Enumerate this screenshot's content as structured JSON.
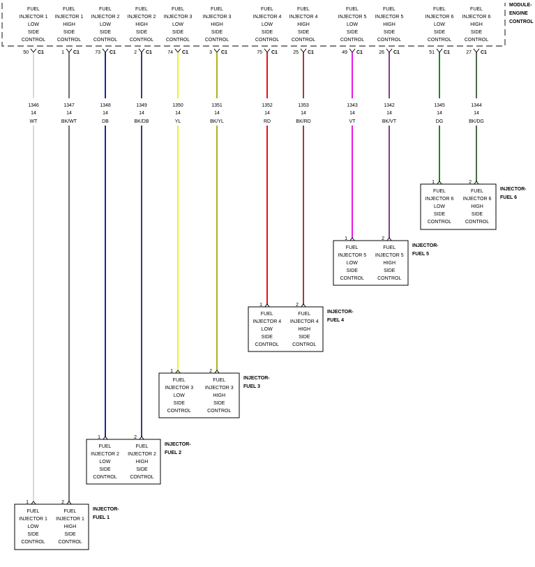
{
  "module": {
    "name_lines": [
      "MODULE-",
      "ENGINE",
      "CONTROL"
    ],
    "connector": "C1"
  },
  "wires": [
    {
      "pin": "50",
      "circuit": "1346",
      "gauge": "14",
      "color_code": "WT",
      "color": "#d9d9d9",
      "desc": [
        "FUEL",
        "INJECTOR 1",
        "LOW",
        "SIDE",
        "CONTROL"
      ],
      "end_pin": "1",
      "injector": 1
    },
    {
      "pin": "1",
      "circuit": "1347",
      "gauge": "14",
      "color_code": "BK/WT",
      "color": "#6e6e6e",
      "desc": [
        "FUEL",
        "INJECTOR 1",
        "HIGH",
        "SIDE",
        "CONTROL"
      ],
      "end_pin": "2",
      "injector": 1
    },
    {
      "pin": "73",
      "circuit": "1348",
      "gauge": "14",
      "color_code": "DB",
      "color": "#1a2a8c",
      "desc": [
        "FUEL",
        "INJECTOR 2",
        "LOW",
        "SIDE",
        "CONTROL"
      ],
      "end_pin": "1",
      "injector": 2
    },
    {
      "pin": "2",
      "circuit": "1349",
      "gauge": "14",
      "color_code": "BK/DB",
      "color": "#3b3b6e",
      "desc": [
        "FUEL",
        "INJECTOR 2",
        "HIGH",
        "SIDE",
        "CONTROL"
      ],
      "end_pin": "2",
      "injector": 2
    },
    {
      "pin": "74",
      "circuit": "1350",
      "gauge": "14",
      "color_code": "YL",
      "color": "#f2f21e",
      "desc": [
        "FUEL",
        "INJECTOR 3",
        "LOW",
        "SIDE",
        "CONTROL"
      ],
      "end_pin": "1",
      "injector": 3
    },
    {
      "pin": "3",
      "circuit": "1351",
      "gauge": "14",
      "color_code": "BK/YL",
      "color": "#b3ad1a",
      "desc": [
        "FUEL",
        "INJECTOR 3",
        "HIGH",
        "SIDE",
        "CONTROL"
      ],
      "end_pin": "2",
      "injector": 3
    },
    {
      "pin": "75",
      "circuit": "1352",
      "gauge": "14",
      "color_code": "RD",
      "color": "#e81414",
      "desc": [
        "FUEL",
        "INJECTOR 4",
        "LOW",
        "SIDE",
        "CONTROL"
      ],
      "end_pin": "1",
      "injector": 4
    },
    {
      "pin": "25",
      "circuit": "1353",
      "gauge": "14",
      "color_code": "BK/RD",
      "color": "#a33a3a",
      "desc": [
        "FUEL",
        "INJECTOR 4",
        "HIGH",
        "SIDE",
        "CONTROL"
      ],
      "end_pin": "2",
      "injector": 4
    },
    {
      "pin": "49",
      "circuit": "1343",
      "gauge": "14",
      "color_code": "VT",
      "color": "#e619e6",
      "desc": [
        "FUEL",
        "INJECTOR 5",
        "LOW",
        "SIDE",
        "CONTROL"
      ],
      "end_pin": "1",
      "injector": 5
    },
    {
      "pin": "26",
      "circuit": "1342",
      "gauge": "14",
      "color_code": "BK/VT",
      "color": "#8a3a8a",
      "desc": [
        "FUEL",
        "INJECTOR 5",
        "HIGH",
        "SIDE",
        "CONTROL"
      ],
      "end_pin": "2",
      "injector": 5
    },
    {
      "pin": "51",
      "circuit": "1345",
      "gauge": "14",
      "color_code": "DG",
      "color": "#1a8a1a",
      "desc": [
        "FUEL",
        "INJECTOR 6",
        "LOW",
        "SIDE",
        "CONTROL"
      ],
      "end_pin": "1",
      "injector": 6
    },
    {
      "pin": "27",
      "circuit": "1344",
      "gauge": "14",
      "color_code": "BK/DG",
      "color": "#4a6a4a",
      "desc": [
        "FUEL",
        "INJECTOR 6",
        "HIGH",
        "SIDE",
        "CONTROL"
      ],
      "end_pin": "2",
      "injector": 6
    }
  ],
  "injectors": [
    {
      "id": 1,
      "name_lines": [
        "INJECTOR-",
        "FUEL 1"
      ]
    },
    {
      "id": 2,
      "name_lines": [
        "INJECTOR-",
        "FUEL 2"
      ]
    },
    {
      "id": 3,
      "name_lines": [
        "INJECTOR-",
        "FUEL 3"
      ]
    },
    {
      "id": 4,
      "name_lines": [
        "INJECTOR-",
        "FUEL 4"
      ]
    },
    {
      "id": 5,
      "name_lines": [
        "INJECTOR-",
        "FUEL 5"
      ]
    },
    {
      "id": 6,
      "name_lines": [
        "INJECTOR-",
        "FUEL 6"
      ]
    }
  ]
}
